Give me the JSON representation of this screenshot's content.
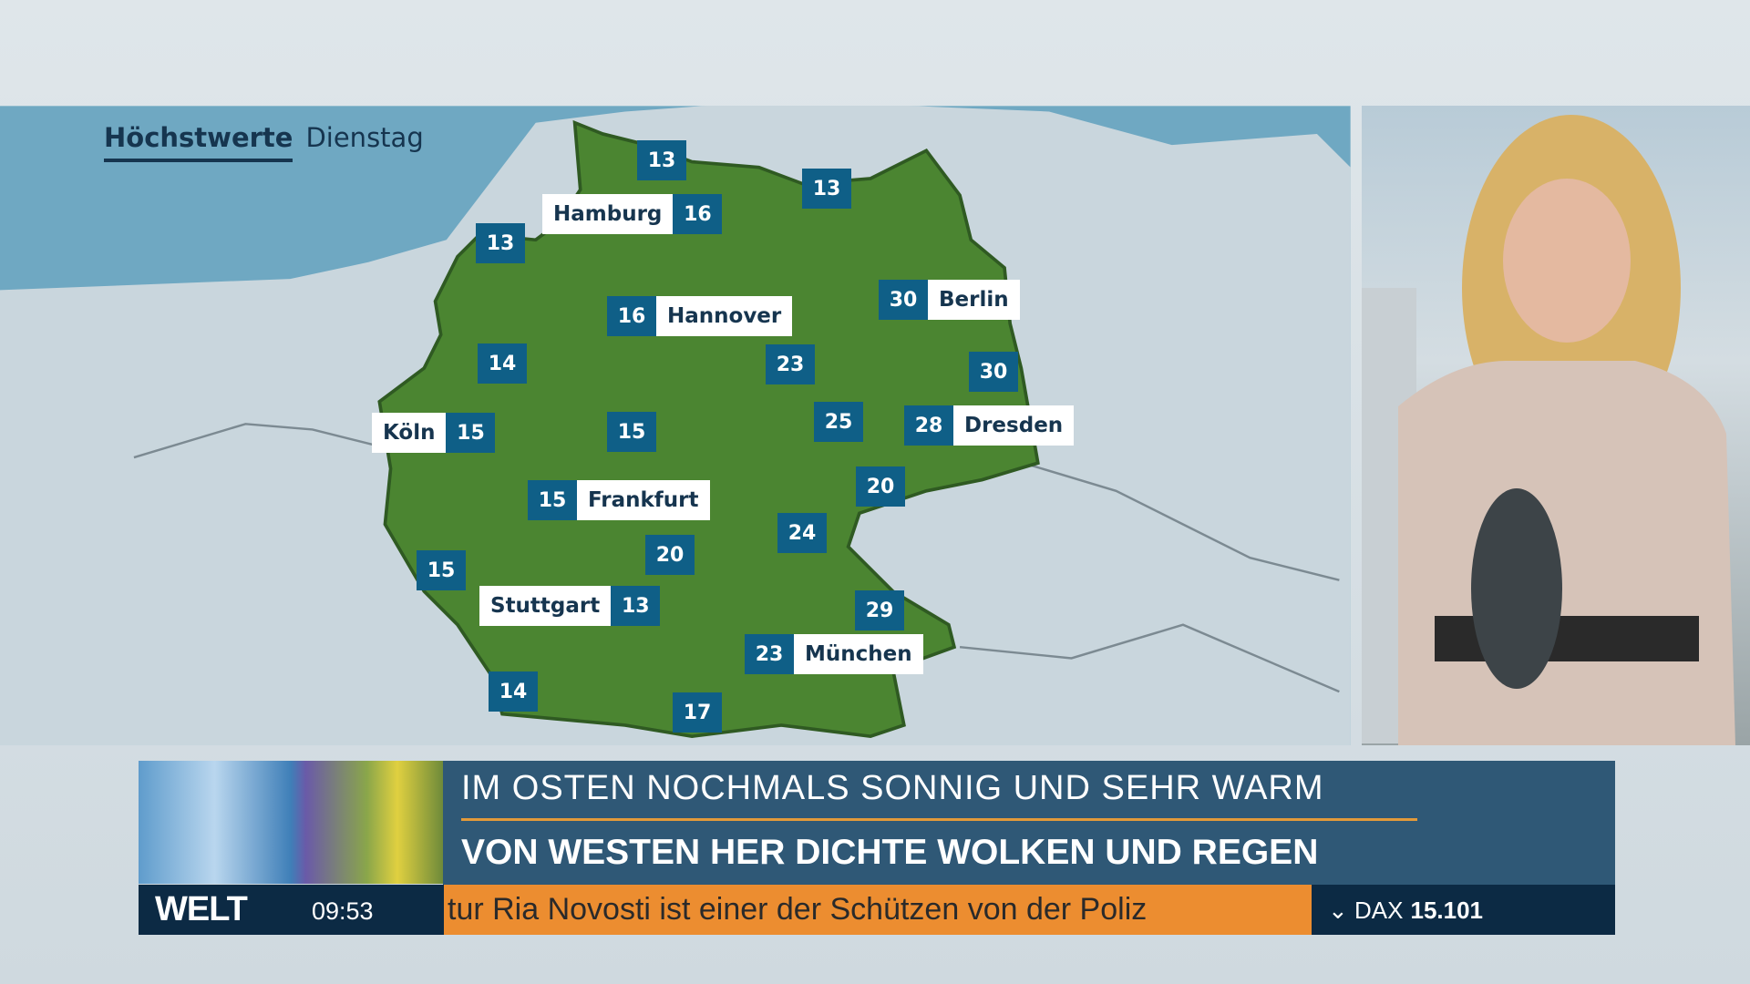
{
  "map": {
    "title": "Höchstwerte",
    "subtitle": "Dienstag",
    "markers": [
      {
        "value": "13",
        "city": ""
      },
      {
        "value": "13",
        "city": ""
      },
      {
        "value": "16",
        "city": "Hamburg"
      },
      {
        "value": "13",
        "city": ""
      },
      {
        "value": "16",
        "city": "Hannover"
      },
      {
        "value": "30",
        "city": "Berlin"
      },
      {
        "value": "14",
        "city": ""
      },
      {
        "value": "23",
        "city": ""
      },
      {
        "value": "30",
        "city": ""
      },
      {
        "value": "15",
        "city": "Köln"
      },
      {
        "value": "15",
        "city": ""
      },
      {
        "value": "25",
        "city": ""
      },
      {
        "value": "28",
        "city": "Dresden"
      },
      {
        "value": "20",
        "city": ""
      },
      {
        "value": "15",
        "city": "Frankfurt"
      },
      {
        "value": "24",
        "city": ""
      },
      {
        "value": "20",
        "city": ""
      },
      {
        "value": "15",
        "city": ""
      },
      {
        "value": "13",
        "city": "Stuttgart"
      },
      {
        "value": "29",
        "city": ""
      },
      {
        "value": "23",
        "city": "München"
      },
      {
        "value": "14",
        "city": ""
      },
      {
        "value": "17",
        "city": ""
      }
    ],
    "colors": {
      "sea": "#6fa8c2",
      "land": "#c9d6dd",
      "germany": "#4b8531",
      "marker": "#0f5f87"
    }
  },
  "lower_third": {
    "headline1": "IM OSTEN NOCHMALS SONNIG UND SEHR WARM",
    "headline2": "VON WESTEN HER DICHTE WOLKEN UND REGEN",
    "logo": "WELT",
    "time": "09:53",
    "ticker": "tur Ria Novosti ist einer der Schützen von der Poliz",
    "dax_label": "DAX",
    "dax_value": "15.101"
  }
}
